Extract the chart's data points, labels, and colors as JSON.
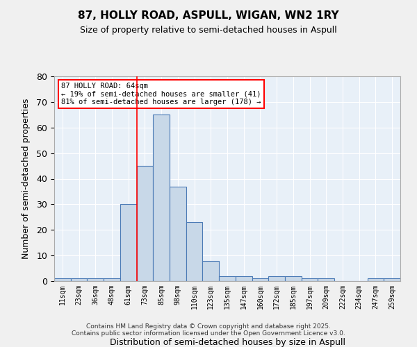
{
  "title1": "87, HOLLY ROAD, ASPULL, WIGAN, WN2 1RY",
  "title2": "Size of property relative to semi-detached houses in Aspull",
  "xlabel": "Distribution of semi-detached houses by size in Aspull",
  "ylabel": "Number of semi-detached properties",
  "categories": [
    "11sqm",
    "23sqm",
    "36sqm",
    "48sqm",
    "61sqm",
    "73sqm",
    "85sqm",
    "98sqm",
    "110sqm",
    "123sqm",
    "135sqm",
    "147sqm",
    "160sqm",
    "172sqm",
    "185sqm",
    "197sqm",
    "209sqm",
    "222sqm",
    "234sqm",
    "247sqm",
    "259sqm"
  ],
  "values": [
    1,
    1,
    1,
    1,
    30,
    45,
    65,
    37,
    23,
    8,
    2,
    2,
    1,
    2,
    2,
    1,
    1,
    0,
    0,
    1,
    1
  ],
  "bar_color": "#c8d8e8",
  "bar_edge_color": "#4a7ab5",
  "red_line_x": 4.5,
  "annotation_line1": "87 HOLLY ROAD: 64sqm",
  "annotation_line2": "← 19% of semi-detached houses are smaller (41)",
  "annotation_line3": "81% of semi-detached houses are larger (178) →",
  "ylim": [
    0,
    80
  ],
  "yticks": [
    0,
    10,
    20,
    30,
    40,
    50,
    60,
    70,
    80
  ],
  "background_color": "#e8f0f8",
  "fig_background_color": "#f0f0f0",
  "footer_line1": "Contains HM Land Registry data © Crown copyright and database right 2025.",
  "footer_line2": "Contains public sector information licensed under the Open Government Licence v3.0."
}
